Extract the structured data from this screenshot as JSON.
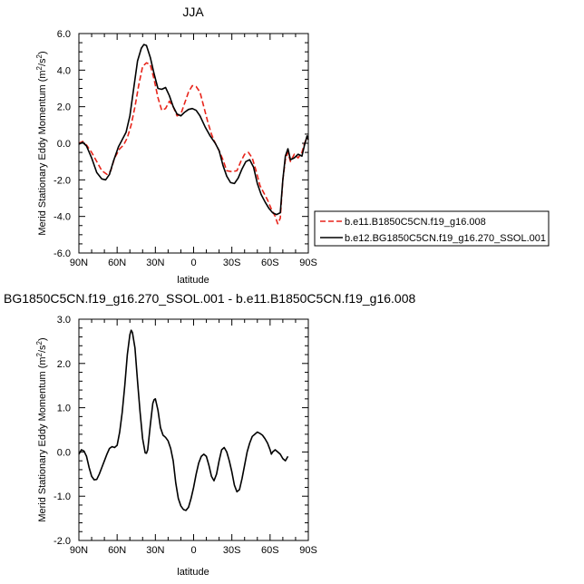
{
  "chart_data": [
    {
      "type": "line",
      "title": "JJA",
      "xlabel": "latitude",
      "ylabel": "Merid Stationary Eddy Momentum (m²/s²)",
      "ylabel_base": "Merid Stationary Eddy Momentum (m",
      "ylabel_units_sup1": "2",
      "ylabel_units_mid": "/s",
      "ylabel_units_sup2": "2",
      "ylabel_units_end": ")",
      "xlim": [
        90,
        -90
      ],
      "ylim": [
        -6,
        6
      ],
      "xticks": [
        90,
        60,
        30,
        0,
        -30,
        -60,
        -90
      ],
      "xtick_labels": [
        "90N",
        "60N",
        "30N",
        "0",
        "30S",
        "60S",
        "90S"
      ],
      "yticks": [
        -6,
        -4,
        -2,
        0,
        2,
        4,
        6
      ],
      "ytick_labels": [
        "-6.0",
        "-4.0",
        "-2.0",
        "0.0",
        "2.0",
        "4.0",
        "6.0"
      ],
      "legend_position": "right",
      "series": [
        {
          "name": "b.e11.B1850C5CN.f19_g16.008",
          "color": "#e8241a",
          "dash": "dashed",
          "points": [
            [
              90,
              0
            ],
            [
              87,
              0.1
            ],
            [
              84,
              -0.1
            ],
            [
              80,
              -0.5
            ],
            [
              76,
              -1.0
            ],
            [
              72,
              -1.5
            ],
            [
              68,
              -1.7
            ],
            [
              65,
              -1.5
            ],
            [
              62,
              -0.8
            ],
            [
              58,
              -0.3
            ],
            [
              55,
              -0.1
            ],
            [
              52,
              0.3
            ],
            [
              49,
              1.0
            ],
            [
              46,
              2.0
            ],
            [
              43,
              3.2
            ],
            [
              40,
              4.2
            ],
            [
              37,
              4.4
            ],
            [
              34,
              4.3
            ],
            [
              31,
              3.5
            ],
            [
              28,
              2.5
            ],
            [
              25,
              1.8
            ],
            [
              22,
              1.9
            ],
            [
              19,
              2.3
            ],
            [
              16,
              2.0
            ],
            [
              13,
              1.5
            ],
            [
              10,
              1.6
            ],
            [
              7,
              2.2
            ],
            [
              4,
              2.8
            ],
            [
              1,
              3.15
            ],
            [
              -2,
              3.1
            ],
            [
              -5,
              2.8
            ],
            [
              -8,
              2.0
            ],
            [
              -11,
              1.2
            ],
            [
              -14,
              0.5
            ],
            [
              -17,
              0.0
            ],
            [
              -20,
              -0.4
            ],
            [
              -23,
              -0.9
            ],
            [
              -26,
              -1.5
            ],
            [
              -30,
              -1.55
            ],
            [
              -34,
              -1.5
            ],
            [
              -37,
              -1.0
            ],
            [
              -40,
              -0.6
            ],
            [
              -43,
              -0.5
            ],
            [
              -46,
              -0.8
            ],
            [
              -49,
              -1.5
            ],
            [
              -52,
              -2.3
            ],
            [
              -55,
              -2.7
            ],
            [
              -58,
              -3.1
            ],
            [
              -61,
              -3.6
            ],
            [
              -64,
              -4.0
            ],
            [
              -66,
              -4.4
            ],
            [
              -68,
              -4.1
            ],
            [
              -70,
              -2.0
            ],
            [
              -72,
              -0.9
            ],
            [
              -74,
              -0.5
            ],
            [
              -76,
              -1.0
            ],
            [
              -79,
              -0.6
            ],
            [
              -82,
              -0.8
            ],
            [
              -85,
              -0.5
            ],
            [
              -87,
              0.0
            ],
            [
              -89,
              0.3
            ],
            [
              -90,
              0.2
            ]
          ]
        },
        {
          "name": "b.e12.BG1850C5CN.f19_g16.270_SSOL.001",
          "color": "#000000",
          "dash": "solid",
          "points": [
            [
              90,
              -0.05
            ],
            [
              87,
              0.05
            ],
            [
              84,
              -0.15
            ],
            [
              80,
              -0.8
            ],
            [
              76,
              -1.6
            ],
            [
              72,
              -1.95
            ],
            [
              69,
              -2.0
            ],
            [
              66,
              -1.7
            ],
            [
              63,
              -1.0
            ],
            [
              59,
              -0.2
            ],
            [
              56,
              0.2
            ],
            [
              53,
              0.6
            ],
            [
              50,
              1.5
            ],
            [
              47,
              3.0
            ],
            [
              44,
              4.5
            ],
            [
              41,
              5.2
            ],
            [
              39,
              5.4
            ],
            [
              37,
              5.35
            ],
            [
              34,
              4.7
            ],
            [
              31,
              3.8
            ],
            [
              28,
              3.0
            ],
            [
              25,
              2.95
            ],
            [
              22,
              3.05
            ],
            [
              19,
              2.6
            ],
            [
              16,
              2.0
            ],
            [
              13,
              1.6
            ],
            [
              10,
              1.5
            ],
            [
              7,
              1.7
            ],
            [
              4,
              1.85
            ],
            [
              1,
              1.9
            ],
            [
              -2,
              1.8
            ],
            [
              -5,
              1.5
            ],
            [
              -9,
              0.9
            ],
            [
              -13,
              0.4
            ],
            [
              -17,
              0.0
            ],
            [
              -20,
              -0.4
            ],
            [
              -23,
              -1.2
            ],
            [
              -26,
              -1.8
            ],
            [
              -29,
              -2.15
            ],
            [
              -32,
              -2.2
            ],
            [
              -35,
              -1.9
            ],
            [
              -38,
              -1.4
            ],
            [
              -41,
              -1.0
            ],
            [
              -44,
              -0.9
            ],
            [
              -47,
              -1.3
            ],
            [
              -50,
              -2.2
            ],
            [
              -53,
              -2.8
            ],
            [
              -56,
              -3.2
            ],
            [
              -59,
              -3.55
            ],
            [
              -62,
              -3.8
            ],
            [
              -65,
              -3.9
            ],
            [
              -68,
              -3.8
            ],
            [
              -70,
              -2.0
            ],
            [
              -72,
              -0.7
            ],
            [
              -74,
              -0.3
            ],
            [
              -76,
              -0.9
            ],
            [
              -79,
              -0.8
            ],
            [
              -82,
              -0.6
            ],
            [
              -85,
              -0.7
            ],
            [
              -87,
              -0.1
            ],
            [
              -89,
              0.4
            ],
            [
              -90,
              0.2
            ]
          ]
        }
      ]
    },
    {
      "type": "line",
      "title": "BG1850C5CN.f19_g16.270_SSOL.001 - b.e11.B1850C5CN.f19_g16.008",
      "xlabel": "latitude",
      "ylabel": "Merid Stationary Eddy Momentum (m²/s²)",
      "ylabel_base": "Merid Stationary Eddy Momentum (m",
      "ylabel_units_sup1": "2",
      "ylabel_units_mid": "/s",
      "ylabel_units_sup2": "2",
      "ylabel_units_end": ")",
      "xlim": [
        90,
        -90
      ],
      "ylim": [
        -2,
        3
      ],
      "xticks": [
        90,
        60,
        30,
        0,
        -30,
        -60,
        -90
      ],
      "xtick_labels": [
        "90N",
        "60N",
        "30N",
        "0",
        "30S",
        "60S",
        "90S"
      ],
      "yticks": [
        -2,
        -1,
        0,
        1,
        2,
        3
      ],
      "ytick_labels": [
        "-2.0",
        "-1.0",
        "0.0",
        "1.0",
        "2.0",
        "3.0"
      ],
      "series": [
        {
          "color": "#000000",
          "dash": "solid",
          "points": [
            [
              90,
              -0.05
            ],
            [
              88,
              0.05
            ],
            [
              86,
              0.02
            ],
            [
              84,
              -0.1
            ],
            [
              82,
              -0.35
            ],
            [
              80,
              -0.55
            ],
            [
              78,
              -0.63
            ],
            [
              76,
              -0.62
            ],
            [
              74,
              -0.5
            ],
            [
              72,
              -0.35
            ],
            [
              70,
              -0.2
            ],
            [
              68,
              -0.05
            ],
            [
              66,
              0.08
            ],
            [
              64,
              0.12
            ],
            [
              62,
              0.1
            ],
            [
              60,
              0.15
            ],
            [
              58,
              0.45
            ],
            [
              56,
              0.9
            ],
            [
              54,
              1.5
            ],
            [
              52,
              2.2
            ],
            [
              50,
              2.65
            ],
            [
              49,
              2.75
            ],
            [
              48,
              2.7
            ],
            [
              46,
              2.35
            ],
            [
              44,
              1.6
            ],
            [
              42,
              0.9
            ],
            [
              40,
              0.3
            ],
            [
              38,
              -0.02
            ],
            [
              37,
              -0.03
            ],
            [
              36,
              0.05
            ],
            [
              34,
              0.6
            ],
            [
              32,
              1.1
            ],
            [
              31,
              1.18
            ],
            [
              30,
              1.2
            ],
            [
              28,
              0.95
            ],
            [
              26,
              0.55
            ],
            [
              24,
              0.38
            ],
            [
              22,
              0.33
            ],
            [
              20,
              0.25
            ],
            [
              18,
              0.08
            ],
            [
              16,
              -0.2
            ],
            [
              14,
              -0.7
            ],
            [
              12,
              -1.05
            ],
            [
              10,
              -1.22
            ],
            [
              8,
              -1.3
            ],
            [
              6,
              -1.32
            ],
            [
              4,
              -1.25
            ],
            [
              2,
              -1.05
            ],
            [
              0,
              -0.8
            ],
            [
              -2,
              -0.5
            ],
            [
              -4,
              -0.25
            ],
            [
              -6,
              -0.1
            ],
            [
              -8,
              -0.05
            ],
            [
              -10,
              -0.1
            ],
            [
              -12,
              -0.3
            ],
            [
              -14,
              -0.55
            ],
            [
              -16,
              -0.65
            ],
            [
              -18,
              -0.5
            ],
            [
              -20,
              -0.2
            ],
            [
              -22,
              0.05
            ],
            [
              -24,
              0.1
            ],
            [
              -26,
              0.0
            ],
            [
              -28,
              -0.2
            ],
            [
              -30,
              -0.45
            ],
            [
              -32,
              -0.75
            ],
            [
              -34,
              -0.9
            ],
            [
              -36,
              -0.85
            ],
            [
              -38,
              -0.6
            ],
            [
              -40,
              -0.3
            ],
            [
              -42,
              0.0
            ],
            [
              -44,
              0.2
            ],
            [
              -46,
              0.35
            ],
            [
              -48,
              0.4
            ],
            [
              -50,
              0.45
            ],
            [
              -52,
              0.42
            ],
            [
              -54,
              0.38
            ],
            [
              -56,
              0.3
            ],
            [
              -58,
              0.2
            ],
            [
              -60,
              0.05
            ],
            [
              -61,
              -0.05
            ],
            [
              -62,
              0.0
            ],
            [
              -64,
              0.05
            ],
            [
              -66,
              0.0
            ],
            [
              -68,
              -0.05
            ],
            [
              -70,
              -0.15
            ],
            [
              -72,
              -0.2
            ],
            [
              -74,
              -0.1
            ]
          ]
        }
      ]
    }
  ]
}
